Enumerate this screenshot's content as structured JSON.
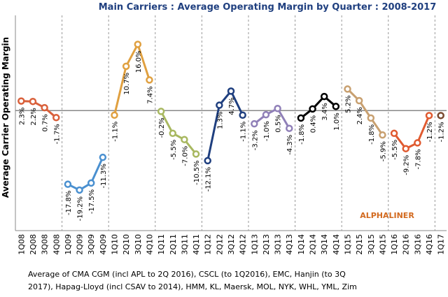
{
  "chart_data": {
    "type": "line",
    "title": "Main Carriers : Average Operating Margin by Quarter : 2008-2017",
    "y_label": "Average Carrier Operating Margin",
    "annotation": "ALPHALINER",
    "footnote": [
      "Average of CMA CGM (incl APL to 2Q 2016), CSCL (to 1Q2016), EMC, Hanjin (to 3Q",
      "2017), Hapag-Lloyd (incl CSAV to 2014), HMM, KL, Maersk, MOL, NYK, WHL, YML, Zim"
    ],
    "categories": [
      "1Q08",
      "2Q08",
      "3Q08",
      "4Q08",
      "1Q09",
      "2Q09",
      "3Q09",
      "4Q09",
      "1Q10",
      "2Q10",
      "3Q10",
      "4Q10",
      "1Q11",
      "2Q11",
      "3Q11",
      "4Q11",
      "1Q12",
      "2Q12",
      "3Q12",
      "4Q12",
      "1Q13",
      "2Q13",
      "3Q13",
      "4Q13",
      "1Q14",
      "2Q14",
      "3Q14",
      "4Q14",
      "1Q15",
      "2Q15",
      "3Q15",
      "4Q15",
      "1Q16",
      "2Q16",
      "3Q16",
      "4Q16",
      "1Q17"
    ],
    "ylim": [
      -29,
      23
    ],
    "series": [
      {
        "color": "#d9603b",
        "values": [
          2.3,
          2.2,
          0.7,
          -1.7,
          null,
          null,
          null,
          null,
          null,
          null,
          null,
          null,
          null,
          null,
          null,
          null,
          null,
          null,
          null,
          null,
          null,
          null,
          null,
          null,
          null,
          null,
          null,
          null,
          null,
          null,
          null,
          null,
          null,
          null,
          null,
          null,
          null
        ],
        "value_labels": [
          "2.3%",
          "2.2%",
          "0.7%",
          "-1.7%",
          null,
          null,
          null,
          null,
          null,
          null,
          null,
          null,
          null,
          null,
          null,
          null,
          null,
          null,
          null,
          null,
          null,
          null,
          null,
          null,
          null,
          null,
          null,
          null,
          null,
          null,
          null,
          null,
          null,
          null,
          null,
          null,
          null
        ]
      },
      {
        "color": "#4a90d0",
        "values": [
          null,
          null,
          null,
          null,
          -17.8,
          -19.2,
          -17.5,
          -11.3,
          null,
          null,
          null,
          null,
          null,
          null,
          null,
          null,
          null,
          null,
          null,
          null,
          null,
          null,
          null,
          null,
          null,
          null,
          null,
          null,
          null,
          null,
          null,
          null,
          null,
          null,
          null,
          null,
          null
        ],
        "value_labels": [
          null,
          null,
          null,
          null,
          "-17.8%",
          "-19.2%",
          "-17.5%",
          "-11.3%",
          null,
          null,
          null,
          null,
          null,
          null,
          null,
          null,
          null,
          null,
          null,
          null,
          null,
          null,
          null,
          null,
          null,
          null,
          null,
          null,
          null,
          null,
          null,
          null,
          null,
          null,
          null,
          null,
          null
        ]
      },
      {
        "color": "#e0a040",
        "values": [
          null,
          null,
          null,
          null,
          null,
          null,
          null,
          null,
          -1.1,
          10.7,
          16.0,
          7.4,
          null,
          null,
          null,
          null,
          null,
          null,
          null,
          null,
          null,
          null,
          null,
          null,
          null,
          null,
          null,
          null,
          null,
          null,
          null,
          null,
          null,
          null,
          null,
          null,
          null
        ],
        "value_labels": [
          null,
          null,
          null,
          null,
          null,
          null,
          null,
          null,
          "-1.1%",
          "10.7%",
          "16.0%",
          "7.4%",
          null,
          null,
          null,
          null,
          null,
          null,
          null,
          null,
          null,
          null,
          null,
          null,
          null,
          null,
          null,
          null,
          null,
          null,
          null,
          null,
          null,
          null,
          null,
          null,
          null
        ]
      },
      {
        "color": "#a8b860",
        "values": [
          null,
          null,
          null,
          null,
          null,
          null,
          null,
          null,
          null,
          null,
          null,
          null,
          -0.2,
          -5.5,
          -7.0,
          -10.5,
          null,
          null,
          null,
          null,
          null,
          null,
          null,
          null,
          null,
          null,
          null,
          null,
          null,
          null,
          null,
          null,
          null,
          null,
          null,
          null,
          null
        ],
        "value_labels": [
          null,
          null,
          null,
          null,
          null,
          null,
          null,
          null,
          null,
          null,
          null,
          null,
          "-0.2%",
          "-5.5%",
          "-7.0%",
          "-10.5%",
          null,
          null,
          null,
          null,
          null,
          null,
          null,
          null,
          null,
          null,
          null,
          null,
          null,
          null,
          null,
          null,
          null,
          null,
          null,
          null,
          null
        ]
      },
      {
        "color": "#1f3f7f",
        "values": [
          null,
          null,
          null,
          null,
          null,
          null,
          null,
          null,
          null,
          null,
          null,
          null,
          null,
          null,
          null,
          null,
          -12.1,
          1.3,
          4.7,
          -1.1,
          null,
          null,
          null,
          null,
          null,
          null,
          null,
          null,
          null,
          null,
          null,
          null,
          null,
          null,
          null,
          null,
          null
        ],
        "value_labels": [
          null,
          null,
          null,
          null,
          null,
          null,
          null,
          null,
          null,
          null,
          null,
          null,
          null,
          null,
          null,
          null,
          "-12.1%",
          "1.3%",
          "4.7%",
          "-1.1%",
          null,
          null,
          null,
          null,
          null,
          null,
          null,
          null,
          null,
          null,
          null,
          null,
          null,
          null,
          null,
          null,
          null
        ]
      },
      {
        "color": "#9080b8",
        "values": [
          null,
          null,
          null,
          null,
          null,
          null,
          null,
          null,
          null,
          null,
          null,
          null,
          null,
          null,
          null,
          null,
          null,
          null,
          null,
          null,
          -3.2,
          -1.0,
          0.5,
          -4.3,
          null,
          null,
          null,
          null,
          null,
          null,
          null,
          null,
          null,
          null,
          null,
          null,
          null
        ],
        "value_labels": [
          null,
          null,
          null,
          null,
          null,
          null,
          null,
          null,
          null,
          null,
          null,
          null,
          null,
          null,
          null,
          null,
          null,
          null,
          null,
          null,
          "-3.2%",
          "-1.0%",
          "0.5%",
          "-4.3%",
          null,
          null,
          null,
          null,
          null,
          null,
          null,
          null,
          null,
          null,
          null,
          null,
          null
        ]
      },
      {
        "color": "#000000",
        "values": [
          null,
          null,
          null,
          null,
          null,
          null,
          null,
          null,
          null,
          null,
          null,
          null,
          null,
          null,
          null,
          null,
          null,
          null,
          null,
          null,
          null,
          null,
          null,
          null,
          -1.8,
          0.4,
          3.4,
          1.0,
          null,
          null,
          null,
          null,
          null,
          null,
          null,
          null,
          null
        ],
        "value_labels": [
          null,
          null,
          null,
          null,
          null,
          null,
          null,
          null,
          null,
          null,
          null,
          null,
          null,
          null,
          null,
          null,
          null,
          null,
          null,
          null,
          null,
          null,
          null,
          null,
          "-1.8%",
          "0.4%",
          "3.4%",
          "1.0%",
          null,
          null,
          null,
          null,
          null,
          null,
          null,
          null,
          null
        ]
      },
      {
        "color": "#c8a070",
        "values": [
          null,
          null,
          null,
          null,
          null,
          null,
          null,
          null,
          null,
          null,
          null,
          null,
          null,
          null,
          null,
          null,
          null,
          null,
          null,
          null,
          null,
          null,
          null,
          null,
          null,
          null,
          null,
          null,
          5.2,
          2.4,
          -1.8,
          -5.9,
          null,
          null,
          null,
          null,
          null
        ],
        "value_labels": [
          null,
          null,
          null,
          null,
          null,
          null,
          null,
          null,
          null,
          null,
          null,
          null,
          null,
          null,
          null,
          null,
          null,
          null,
          null,
          null,
          null,
          null,
          null,
          null,
          null,
          null,
          null,
          null,
          "5.2%",
          "2.4%",
          "-1.8%",
          "-5.9%",
          null,
          null,
          null,
          null,
          null
        ]
      },
      {
        "color": "#e05a30",
        "values": [
          null,
          null,
          null,
          null,
          null,
          null,
          null,
          null,
          null,
          null,
          null,
          null,
          null,
          null,
          null,
          null,
          null,
          null,
          null,
          null,
          null,
          null,
          null,
          null,
          null,
          null,
          null,
          null,
          null,
          null,
          null,
          null,
          -5.5,
          -9.2,
          -7.8,
          -1.2,
          null
        ],
        "value_labels": [
          null,
          null,
          null,
          null,
          null,
          null,
          null,
          null,
          null,
          null,
          null,
          null,
          null,
          null,
          null,
          null,
          null,
          null,
          null,
          null,
          null,
          null,
          null,
          null,
          null,
          null,
          null,
          null,
          null,
          null,
          null,
          null,
          "-5.5%",
          "-9.2%",
          "-7.8%",
          "-1.2%",
          null
        ]
      },
      {
        "color": "#7a4a30",
        "values": [
          null,
          null,
          null,
          null,
          null,
          null,
          null,
          null,
          null,
          null,
          null,
          null,
          null,
          null,
          null,
          null,
          null,
          null,
          null,
          null,
          null,
          null,
          null,
          null,
          null,
          null,
          null,
          null,
          null,
          null,
          null,
          null,
          null,
          null,
          null,
          null,
          -1.2
        ],
        "value_labels": [
          null,
          null,
          null,
          null,
          null,
          null,
          null,
          null,
          null,
          null,
          null,
          null,
          null,
          null,
          null,
          null,
          null,
          null,
          null,
          null,
          null,
          null,
          null,
          null,
          null,
          null,
          null,
          null,
          null,
          null,
          null,
          null,
          null,
          null,
          null,
          null,
          "-1.2%"
        ]
      }
    ]
  }
}
